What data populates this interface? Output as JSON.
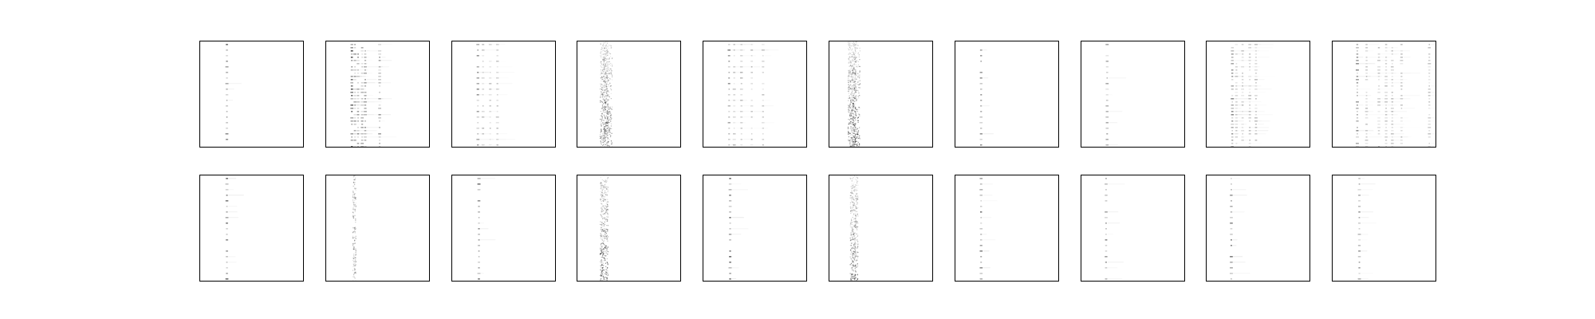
{
  "chart_data": {
    "type": "heatmap",
    "title": "",
    "colormap": "gray_r",
    "axes_visible": false,
    "grid": false,
    "layout": {
      "rows": 2,
      "cols": 10
    },
    "panels": [
      {
        "row": 0,
        "col": 0,
        "texture": "sparse-dots",
        "columns": [
          0.26
        ],
        "intensity": 0.55
      },
      {
        "row": 0,
        "col": 1,
        "texture": "dense-dots",
        "columns": [
          0.25,
          0.28,
          0.31,
          0.35,
          0.38,
          0.52
        ],
        "intensity": 0.7
      },
      {
        "row": 0,
        "col": 2,
        "texture": "sparse-dots",
        "columns": [
          0.25,
          0.3,
          0.37,
          0.44
        ],
        "intensity": 0.45
      },
      {
        "row": 0,
        "col": 3,
        "texture": "diffuse-band",
        "columns": [
          0.24,
          0.28
        ],
        "intensity": 0.5
      },
      {
        "row": 0,
        "col": 4,
        "texture": "sparse-dots",
        "columns": [
          0.25,
          0.3,
          0.37,
          0.47,
          0.58
        ],
        "intensity": 0.5
      },
      {
        "row": 0,
        "col": 5,
        "texture": "diffuse-band",
        "columns": [
          0.2,
          0.24
        ],
        "intensity": 0.55
      },
      {
        "row": 0,
        "col": 6,
        "texture": "sparse-dots",
        "columns": [
          0.25
        ],
        "intensity": 0.45
      },
      {
        "row": 0,
        "col": 7,
        "texture": "sparse-dots",
        "columns": [
          0.25
        ],
        "intensity": 0.35
      },
      {
        "row": 0,
        "col": 8,
        "texture": "dense-dots",
        "columns": [
          0.25,
          0.29,
          0.35,
          0.42,
          0.48
        ],
        "intensity": 0.45
      },
      {
        "row": 0,
        "col": 9,
        "texture": "dense-dots",
        "columns": [
          0.24,
          0.33,
          0.45,
          0.52,
          0.58,
          0.67,
          0.94
        ],
        "intensity": 0.45
      },
      {
        "row": 1,
        "col": 0,
        "texture": "sparse-dots",
        "columns": [
          0.26
        ],
        "intensity": 0.6
      },
      {
        "row": 1,
        "col": 1,
        "texture": "light-streak",
        "columns": [
          0.27
        ],
        "intensity": 0.4
      },
      {
        "row": 1,
        "col": 2,
        "texture": "sparse-dots",
        "columns": [
          0.26
        ],
        "intensity": 0.55
      },
      {
        "row": 1,
        "col": 3,
        "texture": "diffuse-band",
        "columns": [
          0.24
        ],
        "intensity": 0.55
      },
      {
        "row": 1,
        "col": 4,
        "texture": "sparse-dots",
        "columns": [
          0.26
        ],
        "intensity": 0.6
      },
      {
        "row": 1,
        "col": 5,
        "texture": "diffuse-band",
        "columns": [
          0.22
        ],
        "intensity": 0.5
      },
      {
        "row": 1,
        "col": 6,
        "texture": "sparse-dots",
        "columns": [
          0.25
        ],
        "intensity": 0.55
      },
      {
        "row": 1,
        "col": 7,
        "texture": "sparse-dots",
        "columns": [
          0.24
        ],
        "intensity": 0.45
      },
      {
        "row": 1,
        "col": 8,
        "texture": "sparse-dots",
        "columns": [
          0.24
        ],
        "intensity": 0.5
      },
      {
        "row": 1,
        "col": 9,
        "texture": "sparse-dots",
        "columns": [
          0.26
        ],
        "intensity": 0.45
      }
    ]
  }
}
